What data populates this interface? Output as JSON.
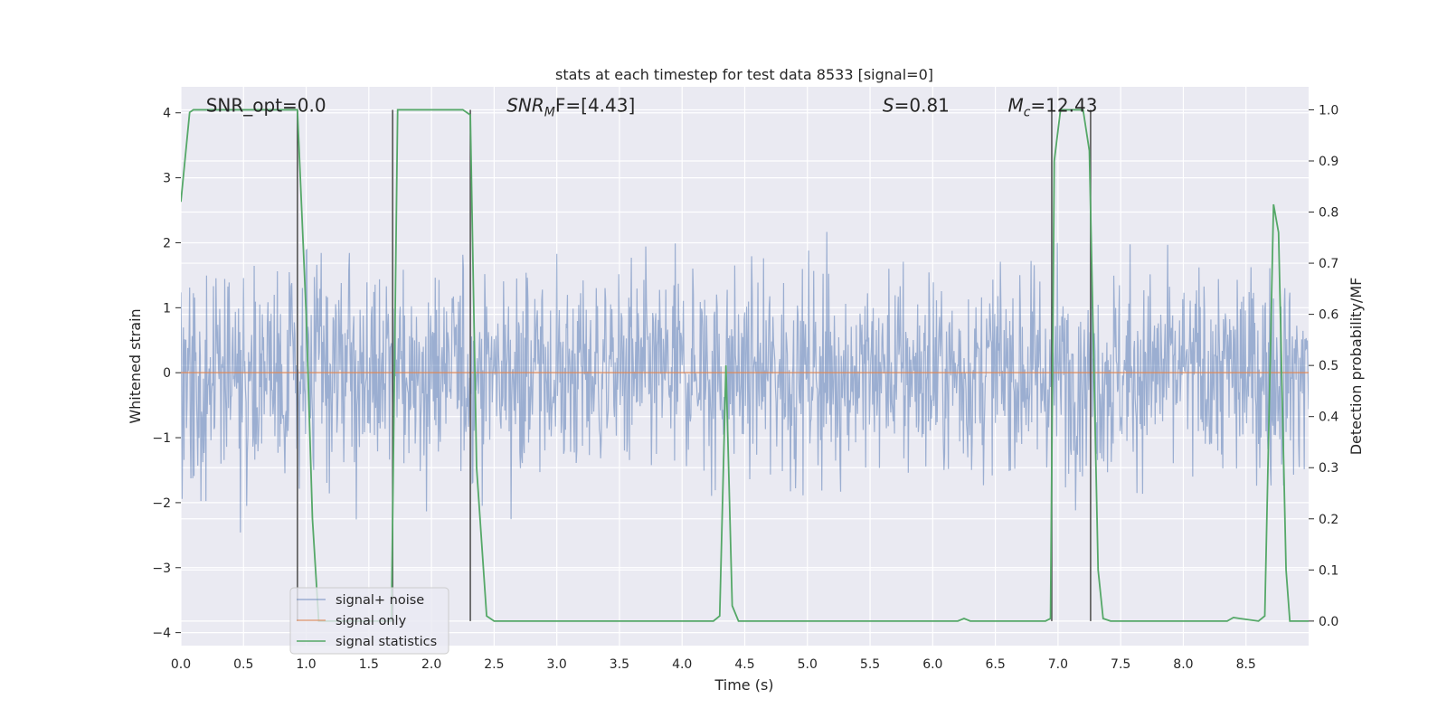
{
  "chart_data": {
    "type": "line",
    "title": "stats at each timestep for test data 8533 [signal=0]",
    "xlabel": "Time (s)",
    "ylabel_left": "Whitened strain",
    "ylabel_right": "Detection probability/MF",
    "xlim": [
      0.0,
      9.0
    ],
    "ylim_left": [
      -4.2,
      4.4
    ],
    "ylim_right": [
      -0.048,
      1.045
    ],
    "grid": true,
    "legend_position": "lower-left",
    "x_ticks": [
      "0.0",
      "0.5",
      "1.0",
      "1.5",
      "2.0",
      "2.5",
      "3.0",
      "3.5",
      "4.0",
      "4.5",
      "5.0",
      "5.5",
      "6.0",
      "6.5",
      "7.0",
      "7.5",
      "8.0",
      "8.5"
    ],
    "y_ticks_left": [
      "4",
      "3",
      "2",
      "1",
      "0",
      "−1",
      "−2",
      "−3",
      "−4"
    ],
    "y_ticks_right": [
      "1.0",
      "0.9",
      "0.8",
      "0.7",
      "0.6",
      "0.5",
      "0.4",
      "0.3",
      "0.2",
      "0.1",
      "0.0"
    ],
    "annotations": [
      {
        "text": "SNR_opt=0.0",
        "x": 0.2
      },
      {
        "base": "SNR",
        "sub": "M",
        "rest": "F=[4.43]",
        "x": 2.6
      },
      {
        "base": "S",
        "rest": "=0.81",
        "x": 5.6
      },
      {
        "base": "M",
        "sub": "c",
        "rest": "=12.43",
        "x": 6.6
      }
    ],
    "vertical_lines_x": [
      0.93,
      1.69,
      2.31,
      6.95,
      7.26
    ],
    "series": [
      {
        "name": "signal+ noise",
        "color": "#4c72b0",
        "alpha": 0.5,
        "kind": "noise",
        "sample_rate": 200,
        "duration": 9.0,
        "spread": 1.1,
        "spike_max": 4.0
      },
      {
        "name": "signal only",
        "color": "#dd8452",
        "x": [
          0.0,
          9.0
        ],
        "y": [
          0.0,
          0.0
        ]
      },
      {
        "name": "signal statistics",
        "color": "#55a868",
        "x": [
          0.0,
          0.07,
          0.1,
          0.9,
          0.93,
          1.0,
          1.05,
          1.1,
          1.2,
          1.68,
          1.73,
          1.76,
          2.25,
          2.31,
          2.36,
          2.44,
          2.5,
          4.25,
          4.3,
          4.35,
          4.4,
          4.45,
          6.2,
          6.25,
          6.3,
          6.9,
          6.94,
          6.97,
          7.02,
          7.2,
          7.25,
          7.32,
          7.36,
          7.42,
          8.35,
          8.4,
          8.45,
          8.6,
          8.65,
          8.72,
          8.76,
          8.82,
          8.85,
          9.0
        ],
        "y": [
          0.82,
          0.995,
          1.0,
          1.0,
          1.0,
          0.6,
          0.2,
          0.0,
          0.0,
          0.0,
          1.0,
          1.0,
          1.0,
          0.99,
          0.3,
          0.01,
          0.0,
          0.0,
          0.01,
          0.5,
          0.03,
          0.0,
          0.0,
          0.005,
          0.0,
          0.0,
          0.005,
          0.9,
          1.0,
          1.0,
          0.92,
          0.1,
          0.005,
          0.0,
          0.0,
          0.007,
          0.005,
          0.0,
          0.01,
          0.815,
          0.76,
          0.1,
          0.0,
          0.0
        ]
      }
    ]
  }
}
